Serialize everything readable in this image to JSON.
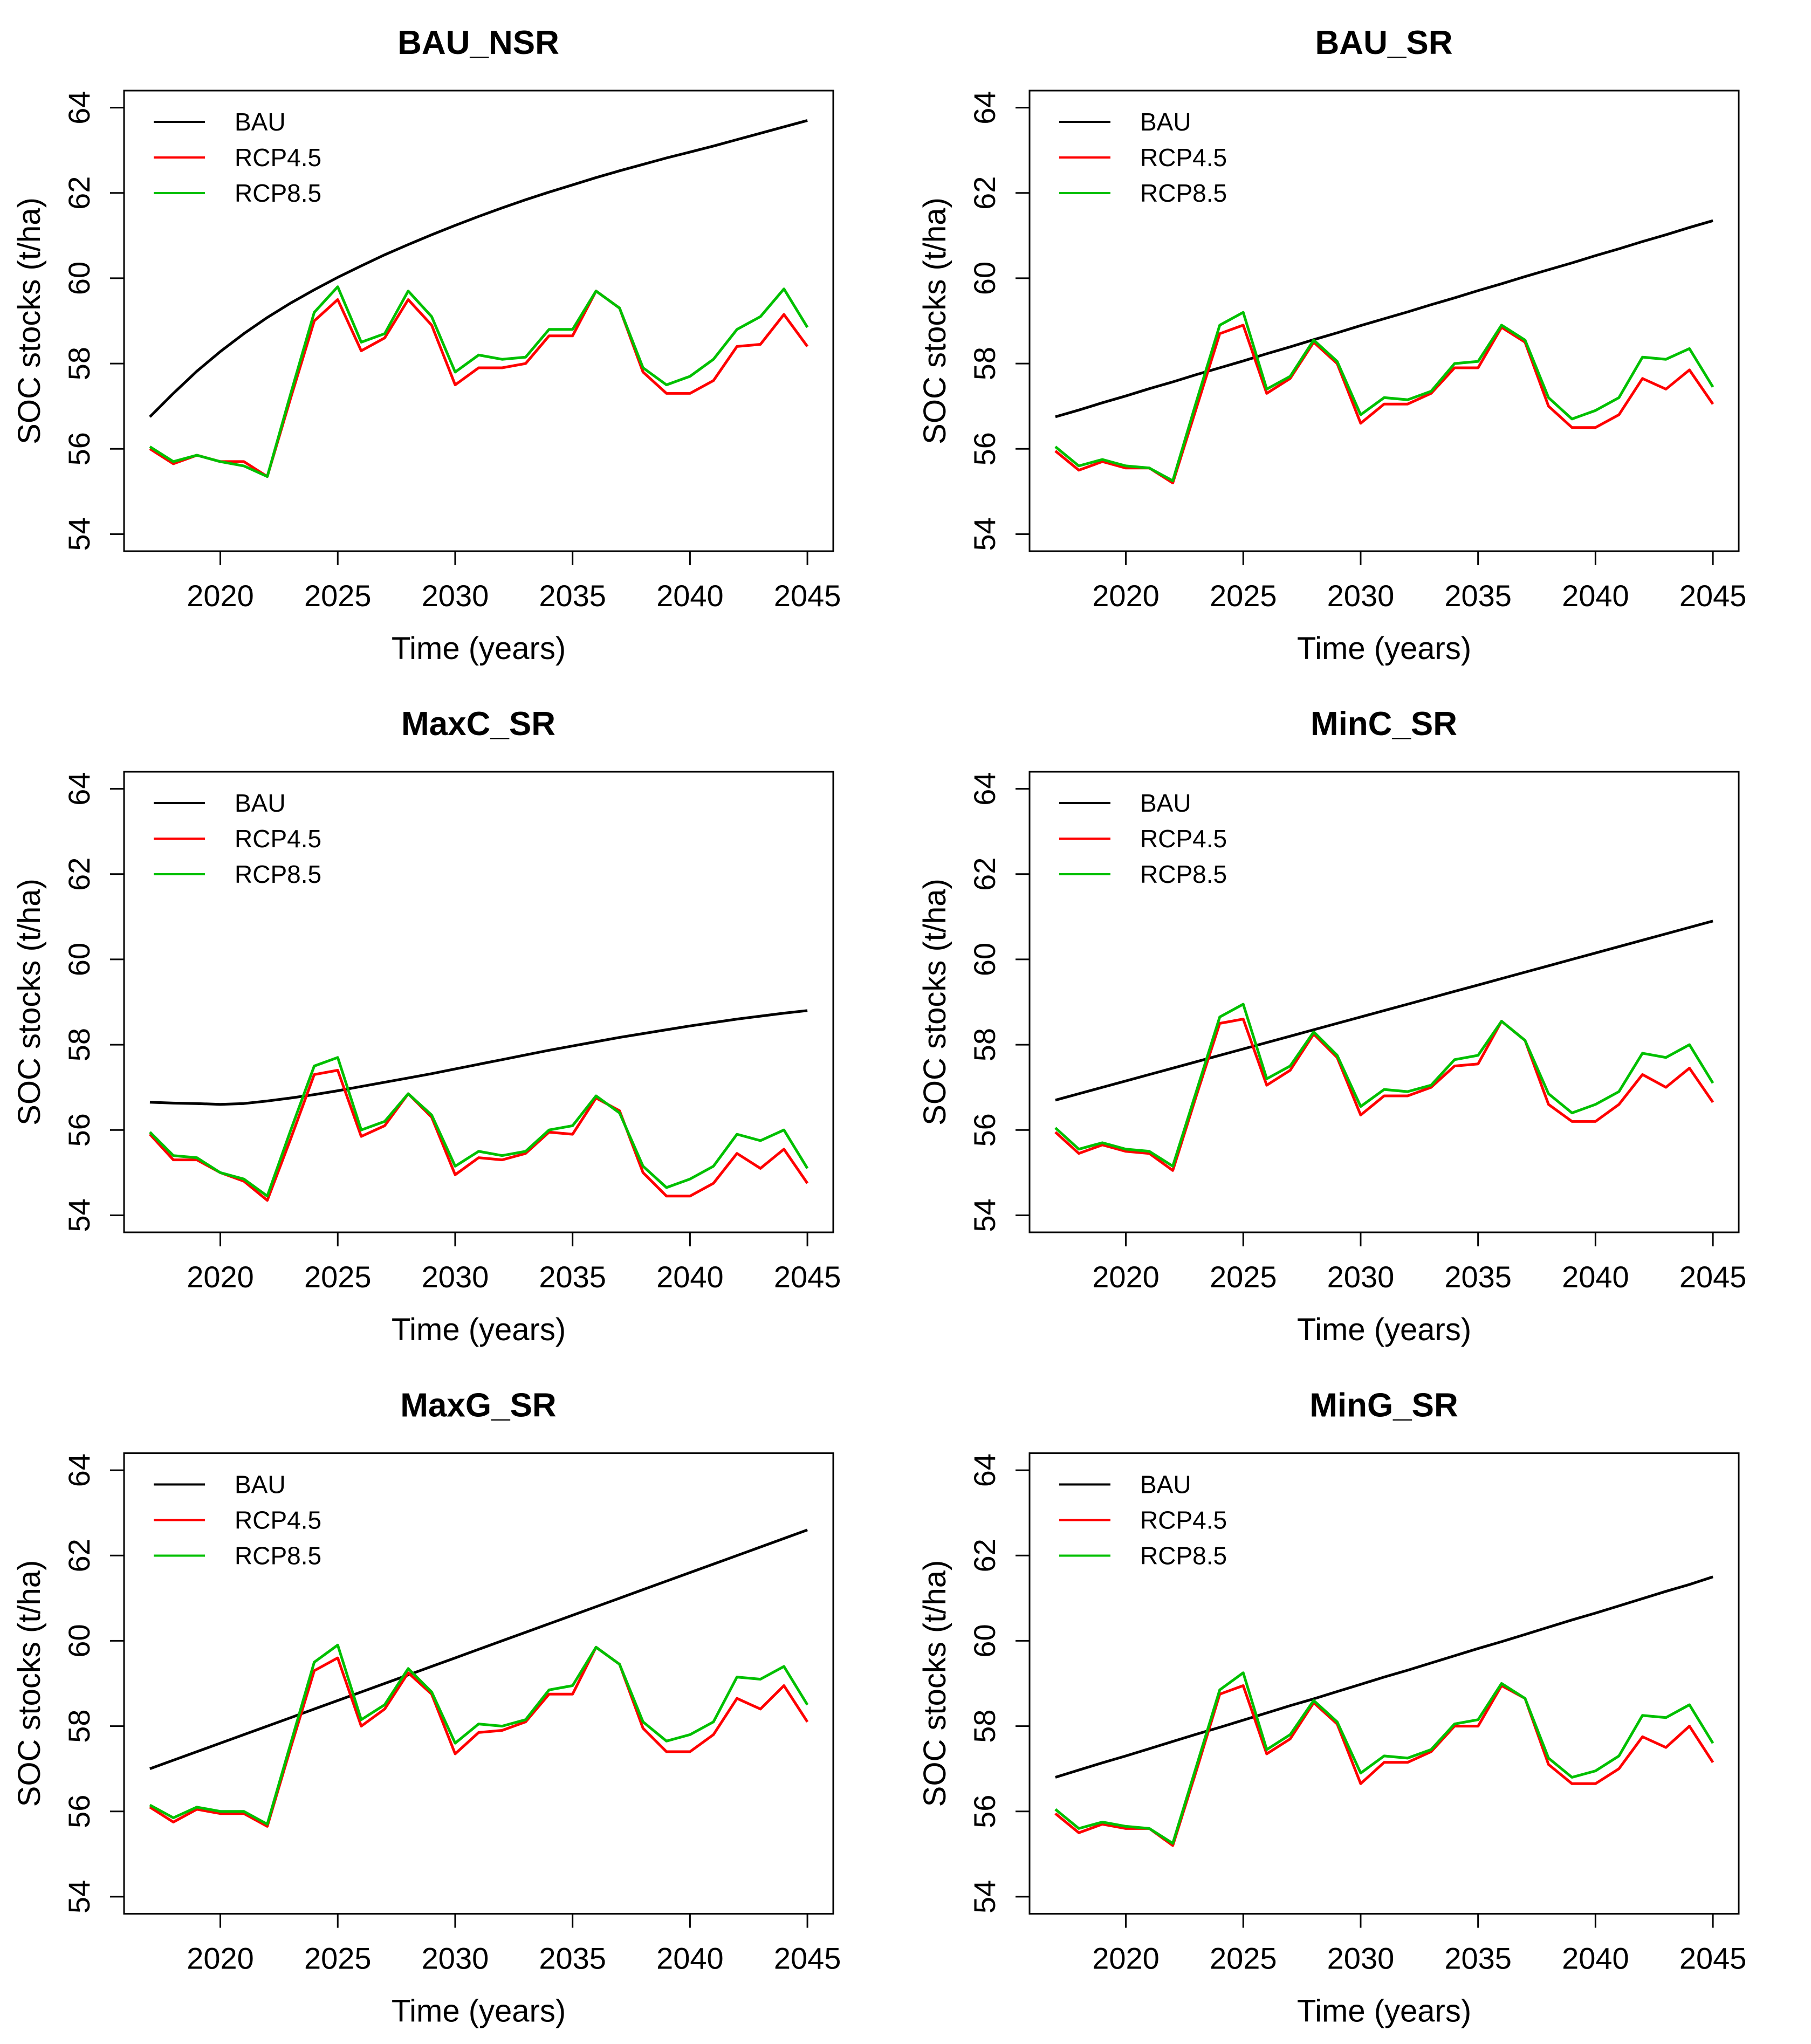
{
  "page": {
    "background": "#FFFFFF"
  },
  "axis": {
    "xlabel": "Time (years)",
    "ylabel": "SOC stocks (t/ha)",
    "xticks": [
      2020,
      2025,
      2030,
      2035,
      2040,
      2045
    ],
    "yticks": [
      54,
      56,
      58,
      60,
      62,
      64
    ],
    "xlim": [
      2015.9,
      2046.1
    ],
    "ylim": [
      53.6,
      64.4
    ],
    "grid": false
  },
  "legend": {
    "position": "top-left",
    "entries": [
      "BAU",
      "RCP4.5",
      "RCP8.5"
    ]
  },
  "colors": {
    "BAU": "#000000",
    "RCP4.5": "#FF0000",
    "RCP8.5": "#00C000"
  },
  "years": [
    2017,
    2018,
    2019,
    2020,
    2021,
    2022,
    2023,
    2024,
    2025,
    2026,
    2027,
    2028,
    2029,
    2030,
    2031,
    2032,
    2033,
    2034,
    2035,
    2036,
    2037,
    2038,
    2039,
    2040,
    2041,
    2042,
    2043,
    2044,
    2045
  ],
  "chart_data": [
    {
      "type": "line",
      "title": "BAU_NSR",
      "xlabel": "Time (years)",
      "ylabel": "SOC stocks (t/ha)",
      "series": [
        {
          "name": "BAU",
          "values": [
            56.75,
            57.3,
            57.82,
            58.28,
            58.7,
            59.08,
            59.42,
            59.73,
            60.02,
            60.29,
            60.55,
            60.79,
            61.02,
            61.24,
            61.45,
            61.65,
            61.84,
            62.02,
            62.19,
            62.36,
            62.52,
            62.67,
            62.82,
            62.96,
            63.1,
            63.25,
            63.4,
            63.55,
            63.7
          ]
        },
        {
          "name": "RCP4.5",
          "values": [
            56.0,
            55.65,
            55.85,
            55.7,
            55.7,
            55.35,
            57.2,
            59.0,
            59.5,
            58.3,
            58.6,
            59.5,
            58.9,
            57.5,
            57.9,
            57.9,
            58.0,
            58.65,
            58.65,
            59.7,
            59.3,
            57.8,
            57.3,
            57.3,
            57.6,
            58.4,
            58.45,
            59.15,
            58.4
          ]
        },
        {
          "name": "RCP8.5",
          "values": [
            56.05,
            55.7,
            55.85,
            55.7,
            55.6,
            55.35,
            57.3,
            59.2,
            59.8,
            58.5,
            58.7,
            59.7,
            59.1,
            57.8,
            58.2,
            58.1,
            58.15,
            58.8,
            58.8,
            59.7,
            59.3,
            57.9,
            57.5,
            57.7,
            58.1,
            58.8,
            59.1,
            59.75,
            58.85
          ]
        }
      ]
    },
    {
      "type": "line",
      "title": "BAU_SR",
      "xlabel": "Time (years)",
      "ylabel": "SOC stocks (t/ha)",
      "series": [
        {
          "name": "BAU",
          "values": [
            56.75,
            56.91,
            57.08,
            57.24,
            57.41,
            57.57,
            57.74,
            57.9,
            58.06,
            58.23,
            58.39,
            58.56,
            58.72,
            58.89,
            59.05,
            59.21,
            59.38,
            59.54,
            59.71,
            59.87,
            60.04,
            60.2,
            60.36,
            60.53,
            60.69,
            60.86,
            61.02,
            61.19,
            61.35
          ]
        },
        {
          "name": "RCP4.5",
          "values": [
            55.95,
            55.5,
            55.7,
            55.55,
            55.55,
            55.2,
            56.95,
            58.7,
            58.9,
            57.3,
            57.65,
            58.5,
            58.0,
            56.6,
            57.05,
            57.05,
            57.3,
            57.9,
            57.9,
            58.85,
            58.5,
            57.0,
            56.5,
            56.5,
            56.8,
            57.65,
            57.4,
            57.85,
            57.05
          ]
        },
        {
          "name": "RCP8.5",
          "values": [
            56.05,
            55.6,
            55.75,
            55.6,
            55.55,
            55.25,
            57.1,
            58.9,
            59.2,
            57.4,
            57.7,
            58.55,
            58.05,
            56.8,
            57.2,
            57.15,
            57.35,
            58.0,
            58.05,
            58.9,
            58.55,
            57.2,
            56.7,
            56.9,
            57.2,
            58.15,
            58.1,
            58.35,
            57.45
          ]
        }
      ]
    },
    {
      "type": "line",
      "title": "MaxC_SR",
      "xlabel": "Time (years)",
      "ylabel": "SOC stocks (t/ha)",
      "series": [
        {
          "name": "BAU",
          "values": [
            56.65,
            56.63,
            56.62,
            56.6,
            56.62,
            56.68,
            56.75,
            56.83,
            56.92,
            57.02,
            57.12,
            57.22,
            57.32,
            57.43,
            57.54,
            57.65,
            57.76,
            57.87,
            57.97,
            58.07,
            58.17,
            58.26,
            58.35,
            58.44,
            58.52,
            58.6,
            58.67,
            58.74,
            58.8
          ]
        },
        {
          "name": "RCP4.5",
          "values": [
            55.9,
            55.3,
            55.3,
            55.0,
            54.8,
            54.35,
            55.8,
            57.3,
            57.4,
            55.85,
            56.1,
            56.85,
            56.3,
            54.95,
            55.35,
            55.3,
            55.45,
            55.95,
            55.9,
            56.75,
            56.45,
            55.0,
            54.45,
            54.45,
            54.75,
            55.45,
            55.1,
            55.55,
            54.75
          ]
        },
        {
          "name": "RCP8.5",
          "values": [
            55.95,
            55.4,
            55.35,
            55.0,
            54.85,
            54.45,
            56.0,
            57.5,
            57.7,
            56.0,
            56.2,
            56.85,
            56.35,
            55.15,
            55.5,
            55.4,
            55.5,
            56.0,
            56.1,
            56.8,
            56.4,
            55.15,
            54.65,
            54.85,
            55.15,
            55.9,
            55.75,
            56.0,
            55.1
          ]
        }
      ]
    },
    {
      "type": "line",
      "title": "MinC_SR",
      "xlabel": "Time (years)",
      "ylabel": "SOC stocks (t/ha)",
      "series": [
        {
          "name": "BAU",
          "values": [
            56.7,
            56.85,
            57.0,
            57.15,
            57.3,
            57.45,
            57.6,
            57.75,
            57.9,
            58.05,
            58.2,
            58.35,
            58.5,
            58.65,
            58.8,
            58.95,
            59.1,
            59.25,
            59.4,
            59.55,
            59.7,
            59.85,
            60.0,
            60.15,
            60.3,
            60.45,
            60.6,
            60.75,
            60.9
          ]
        },
        {
          "name": "RCP4.5",
          "values": [
            55.95,
            55.45,
            55.65,
            55.5,
            55.45,
            55.05,
            56.8,
            58.5,
            58.6,
            57.05,
            57.4,
            58.25,
            57.7,
            56.35,
            56.8,
            56.8,
            57.0,
            57.5,
            57.55,
            58.55,
            58.1,
            56.6,
            56.2,
            56.2,
            56.6,
            57.3,
            57.0,
            57.45,
            56.65
          ]
        },
        {
          "name": "RCP8.5",
          "values": [
            56.05,
            55.55,
            55.7,
            55.55,
            55.5,
            55.15,
            56.9,
            58.65,
            58.95,
            57.2,
            57.5,
            58.3,
            57.75,
            56.55,
            56.95,
            56.9,
            57.05,
            57.65,
            57.75,
            58.55,
            58.1,
            56.85,
            56.4,
            56.6,
            56.9,
            57.8,
            57.7,
            58.0,
            57.1
          ]
        }
      ]
    },
    {
      "type": "line",
      "title": "MaxG_SR",
      "xlabel": "Time (years)",
      "ylabel": "SOC stocks (t/ha)",
      "series": [
        {
          "name": "BAU",
          "values": [
            57.0,
            57.2,
            57.4,
            57.6,
            57.8,
            58.0,
            58.2,
            58.4,
            58.6,
            58.8,
            59.0,
            59.2,
            59.4,
            59.6,
            59.8,
            60.0,
            60.2,
            60.4,
            60.6,
            60.8,
            61.0,
            61.2,
            61.4,
            61.6,
            61.8,
            62.0,
            62.2,
            62.4,
            62.6
          ]
        },
        {
          "name": "RCP4.5",
          "values": [
            56.1,
            55.75,
            56.05,
            55.95,
            55.95,
            55.65,
            57.5,
            59.3,
            59.6,
            58.0,
            58.4,
            59.25,
            58.75,
            57.35,
            57.85,
            57.9,
            58.1,
            58.75,
            58.75,
            59.85,
            59.45,
            57.95,
            57.4,
            57.4,
            57.8,
            58.65,
            58.4,
            58.95,
            58.1
          ]
        },
        {
          "name": "RCP8.5",
          "values": [
            56.15,
            55.85,
            56.1,
            56.0,
            56.0,
            55.7,
            57.6,
            59.5,
            59.9,
            58.15,
            58.5,
            59.35,
            58.8,
            57.6,
            58.05,
            58.0,
            58.15,
            58.85,
            58.95,
            59.85,
            59.45,
            58.1,
            57.65,
            57.8,
            58.1,
            59.15,
            59.1,
            59.4,
            58.5
          ]
        }
      ]
    },
    {
      "type": "line",
      "title": "MinG_SR",
      "xlabel": "Time (years)",
      "ylabel": "SOC stocks (t/ha)",
      "series": [
        {
          "name": "BAU",
          "values": [
            56.8,
            56.97,
            57.14,
            57.3,
            57.47,
            57.64,
            57.81,
            57.97,
            58.14,
            58.31,
            58.48,
            58.64,
            58.81,
            58.98,
            59.15,
            59.31,
            59.48,
            59.65,
            59.82,
            59.98,
            60.15,
            60.32,
            60.49,
            60.65,
            60.82,
            60.99,
            61.16,
            61.32,
            61.5
          ]
        },
        {
          "name": "RCP4.5",
          "values": [
            55.95,
            55.5,
            55.7,
            55.6,
            55.6,
            55.2,
            56.95,
            58.75,
            58.95,
            57.35,
            57.7,
            58.55,
            58.05,
            56.65,
            57.15,
            57.15,
            57.4,
            58.0,
            58.0,
            58.95,
            58.65,
            57.1,
            56.65,
            56.65,
            57.0,
            57.75,
            57.5,
            58.0,
            57.15
          ]
        },
        {
          "name": "RCP8.5",
          "values": [
            56.05,
            55.6,
            55.75,
            55.65,
            55.6,
            55.25,
            57.05,
            58.85,
            59.25,
            57.45,
            57.8,
            58.6,
            58.1,
            56.9,
            57.3,
            57.25,
            57.45,
            58.05,
            58.15,
            59.0,
            58.65,
            57.25,
            56.8,
            56.95,
            57.3,
            58.25,
            58.2,
            58.5,
            57.6
          ]
        }
      ]
    }
  ]
}
